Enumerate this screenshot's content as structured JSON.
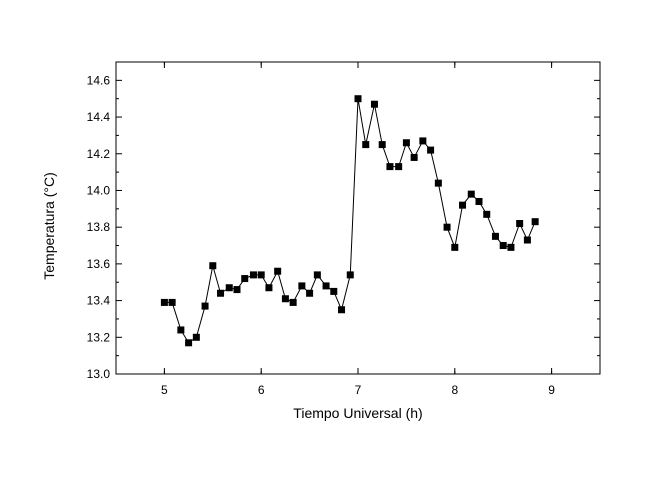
{
  "chart_data": {
    "type": "scatter",
    "line_connected": true,
    "marker": "square",
    "xlabel": "Tiempo Universal (h)",
    "ylabel": "Temperatura (°C)",
    "xlim": [
      4.5,
      9.5
    ],
    "ylim": [
      13.0,
      14.7
    ],
    "xticks": [
      5,
      6,
      7,
      8,
      9
    ],
    "yticks": [
      13.0,
      13.2,
      13.4,
      13.6,
      13.8,
      14.0,
      14.2,
      14.4,
      14.6
    ],
    "xtick_labels": [
      "5",
      "6",
      "7",
      "8",
      "9"
    ],
    "ytick_labels": [
      "13.0",
      "13.2",
      "13.4",
      "13.6",
      "13.8",
      "14.0",
      "14.2",
      "14.4",
      "14.6"
    ],
    "grid": false,
    "series": [
      {
        "color": "#000000",
        "x": [
          5.0,
          5.08,
          5.17,
          5.25,
          5.33,
          5.42,
          5.5,
          5.58,
          5.67,
          5.75,
          5.83,
          5.92,
          6.0,
          6.08,
          6.17,
          6.25,
          6.33,
          6.42,
          6.5,
          6.58,
          6.67,
          6.75,
          6.83,
          6.92,
          7.0,
          7.08,
          7.17,
          7.25,
          7.33,
          7.42,
          7.5,
          7.58,
          7.67,
          7.75,
          7.83,
          7.92,
          8.0,
          8.08,
          8.17,
          8.25,
          8.33,
          8.42,
          8.5,
          8.58,
          8.67,
          8.75,
          8.83
        ],
        "y": [
          13.39,
          13.39,
          13.24,
          13.17,
          13.2,
          13.37,
          13.59,
          13.44,
          13.47,
          13.46,
          13.52,
          13.54,
          13.54,
          13.47,
          13.56,
          13.41,
          13.39,
          13.48,
          13.44,
          13.54,
          13.48,
          13.45,
          13.35,
          13.54,
          14.5,
          14.25,
          14.47,
          14.25,
          14.13,
          14.13,
          14.26,
          14.18,
          14.27,
          14.22,
          14.04,
          13.8,
          13.69,
          13.92,
          13.98,
          13.94,
          13.87,
          13.75,
          13.7,
          13.69,
          13.82,
          13.73,
          13.83
        ]
      }
    ]
  }
}
